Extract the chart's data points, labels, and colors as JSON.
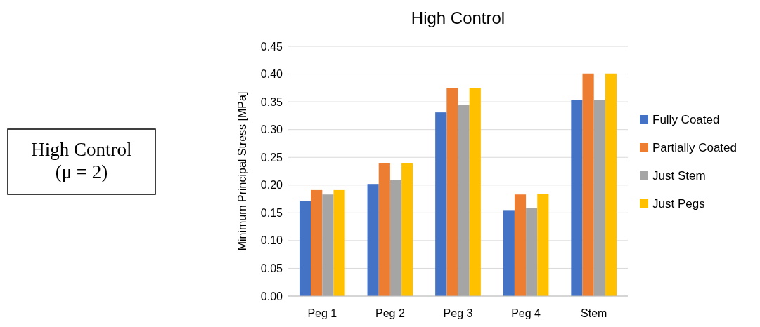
{
  "chart_data": {
    "type": "bar",
    "title": "High Control",
    "ylabel": "Minimum Principal Stress [MPa]",
    "categories": [
      "Peg 1",
      "Peg 2",
      "Peg 3",
      "Peg 4",
      "Stem"
    ],
    "series": [
      {
        "name": "Fully Coated",
        "color": "#4472c4",
        "values": [
          0.171,
          0.202,
          0.331,
          0.155,
          0.353
        ]
      },
      {
        "name": "Partially Coated",
        "color": "#ed7d31",
        "values": [
          0.191,
          0.239,
          0.375,
          0.183,
          0.401
        ]
      },
      {
        "name": "Just Stem",
        "color": "#a5a5a5",
        "values": [
          0.183,
          0.209,
          0.344,
          0.159,
          0.353
        ]
      },
      {
        "name": "Just Pegs",
        "color": "#ffc000",
        "values": [
          0.191,
          0.239,
          0.375,
          0.184,
          0.401
        ]
      }
    ],
    "ylim": [
      0,
      0.45
    ],
    "yticks": [
      {
        "value": 0,
        "label": "0.00"
      },
      {
        "value": 0.05,
        "label": "0.05"
      },
      {
        "value": 0.1,
        "label": "0.10"
      },
      {
        "value": 0.15,
        "label": "0.15"
      },
      {
        "value": 0.2,
        "label": "0.20"
      },
      {
        "value": 0.25,
        "label": "0.25"
      },
      {
        "value": 0.3,
        "label": "0.30"
      },
      {
        "value": 0.35,
        "label": "0.35"
      },
      {
        "value": 0.4,
        "label": "0.40"
      },
      {
        "value": 0.45,
        "label": "0.45"
      }
    ],
    "grid": "y",
    "legend": "right",
    "annotations": [
      "High Control\n(μ = 2)"
    ]
  }
}
